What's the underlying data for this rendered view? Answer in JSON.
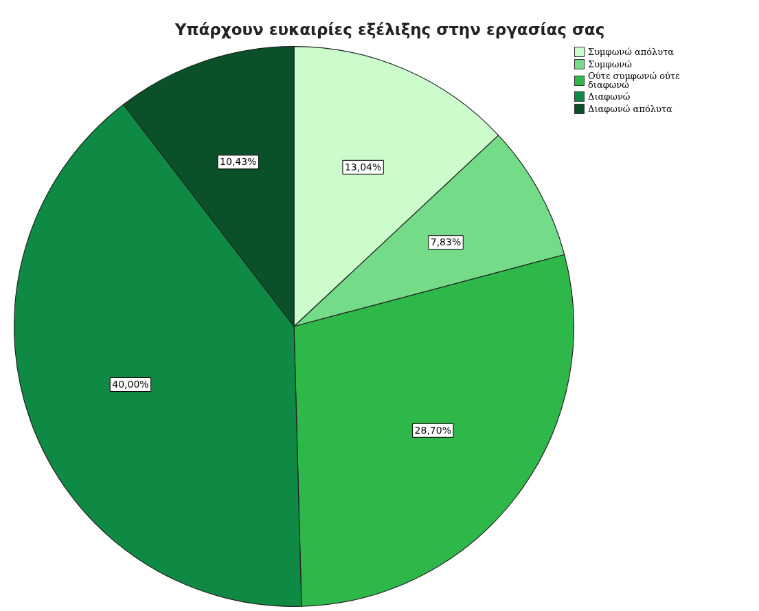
{
  "chart_data": {
    "type": "pie",
    "title": "Υπάρχουν ευκαιρίες εξέλιξης στην εργασίας σας",
    "categories": [
      "Συμφωνώ απόλυτα",
      "Συμφωνώ",
      "Ούτε συμφωνώ ούτε διαφωνώ",
      "Διαφωνώ",
      "Διαφωνώ απόλυτα"
    ],
    "values": [
      13.04,
      7.83,
      28.7,
      40.0,
      10.43
    ],
    "value_labels": [
      "13,04%",
      "7,83%",
      "28,70%",
      "40,00%",
      "10,43%"
    ],
    "colors": [
      "#ccfccc",
      "#74dc88",
      "#2fb84a",
      "#0f8a45",
      "#0a5129"
    ],
    "legend": "top right"
  }
}
